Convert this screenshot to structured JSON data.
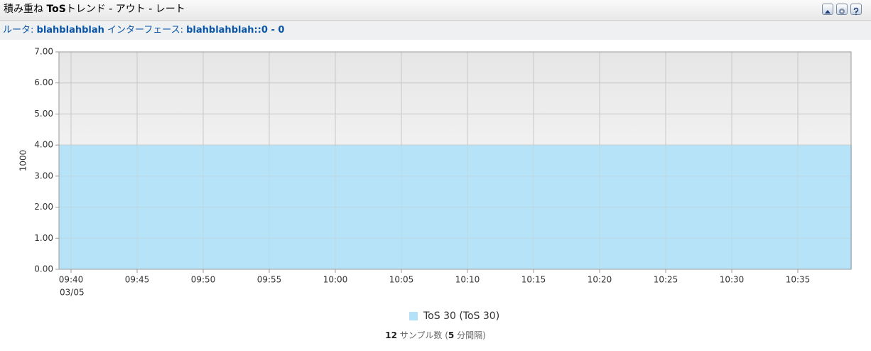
{
  "header": {
    "title_prefix": "積み重ね ",
    "title_bold": "ToS",
    "title_suffix": "トレンド - アウト - レート",
    "router_label": "ルータ: ",
    "router": "blahblahblah",
    "interface_label": " インターフェース: ",
    "interface": "blahblahblah::0 - 0"
  },
  "chart_data": {
    "type": "area",
    "y_label": "1000",
    "date_label": "03/05",
    "x": [
      "09:40",
      "09:45",
      "09:50",
      "09:55",
      "10:00",
      "10:05",
      "10:10",
      "10:15",
      "10:20",
      "10:25",
      "10:30",
      "10:35"
    ],
    "series": [
      {
        "name": "ToS 30 (ToS 30)",
        "color": "#b3e2f8",
        "values": [
          4,
          4,
          4,
          4,
          4,
          4,
          4,
          4,
          4,
          4,
          4,
          4
        ]
      }
    ],
    "ylim": [
      0,
      7
    ],
    "yticks": [
      {
        "value": 0,
        "label": "0.00"
      },
      {
        "value": 1,
        "label": "1.00"
      },
      {
        "value": 2,
        "label": "2.00"
      },
      {
        "value": 3,
        "label": "3.00"
      },
      {
        "value": 4,
        "label": "4.00"
      },
      {
        "value": 5,
        "label": "5.00"
      },
      {
        "value": 6,
        "label": "6.00"
      },
      {
        "value": 7,
        "label": "7.00"
      }
    ],
    "grid": true
  },
  "footer": {
    "count": "12",
    "count_label": "サンプル数 (",
    "interval": "5",
    "interval_label": "分間隔)"
  }
}
